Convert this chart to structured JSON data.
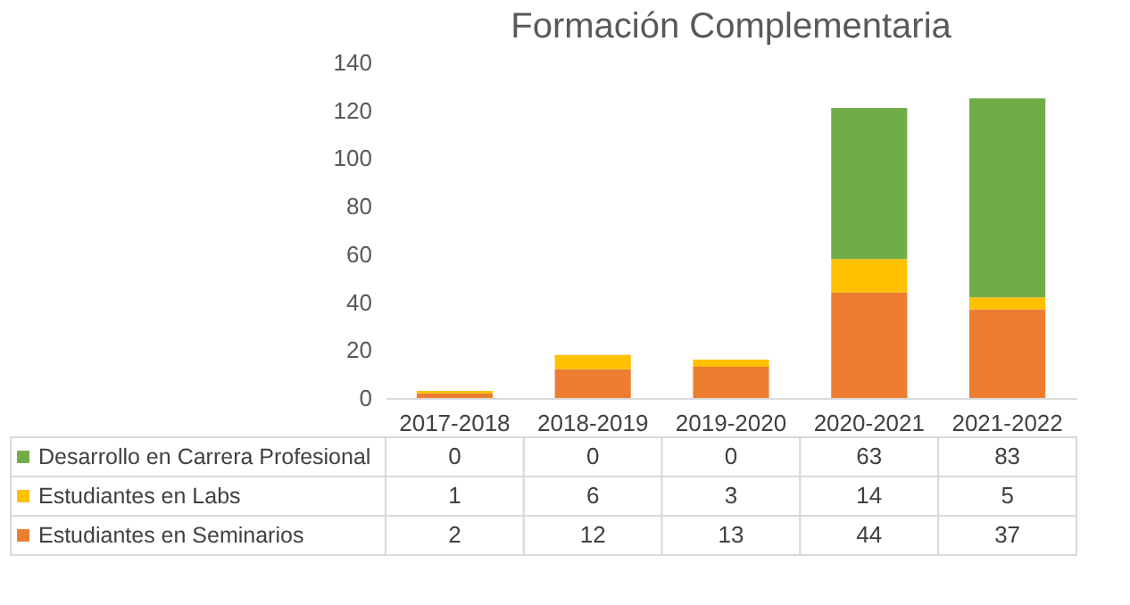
{
  "chart_data": {
    "type": "bar",
    "title": "Formación Complementaria",
    "stacked": true,
    "data_labels": true,
    "legend": "bottom",
    "grid": false,
    "categories": [
      "2017-2018",
      "2018-2019",
      "2019-2020",
      "2020-2021",
      "2021-2022"
    ],
    "ylim": [
      0,
      140
    ],
    "yticks": [
      0,
      20,
      40,
      60,
      80,
      100,
      120,
      140
    ],
    "series": [
      {
        "name": "Estudiantes en Seminarios",
        "color": "#ed7d31",
        "values": [
          2,
          12,
          13,
          44,
          37
        ]
      },
      {
        "name": "Estudiantes en Labs",
        "color": "#ffc000",
        "values": [
          1,
          6,
          3,
          14,
          5
        ]
      },
      {
        "name": "Desarrollo en Carrera Profesional",
        "color": "#70ad47",
        "values": [
          0,
          0,
          0,
          63,
          83
        ]
      }
    ]
  }
}
